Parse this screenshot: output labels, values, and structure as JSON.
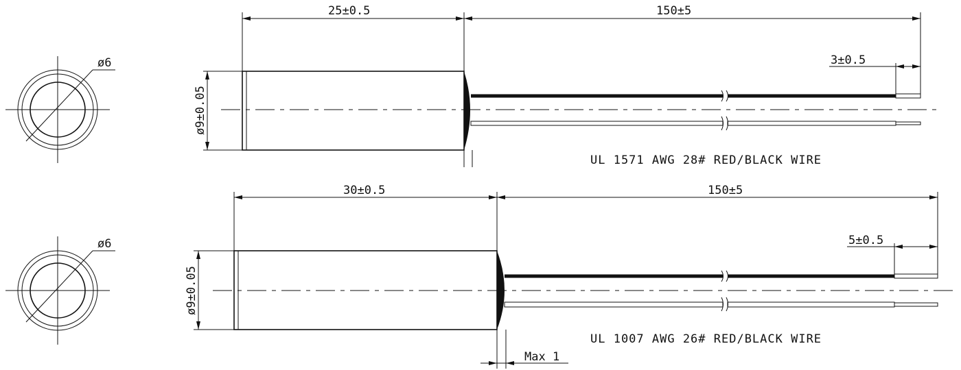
{
  "drawings": [
    {
      "id": "top",
      "end_view": {
        "diameter_label": "ø6"
      },
      "body": {
        "length_label": "25±0.5",
        "diameter_label": "ø9±0.05"
      },
      "lead": {
        "length_label": "150±5",
        "strip_label": "3±0.5"
      },
      "wire_note": "UL 1571 AWG 28# RED/BLACK WIRE"
    },
    {
      "id": "bottom",
      "end_view": {
        "diameter_label": "ø6"
      },
      "body": {
        "length_label": "30±0.5",
        "diameter_label": "ø9±0.05"
      },
      "lead": {
        "length_label": "150±5",
        "strip_label": "5±0.5"
      },
      "wire_note": "UL 1007 AWG 26# RED/BLACK WIRE",
      "potting_label": "Max 1"
    }
  ],
  "colors": {
    "line": "#111111",
    "background": "#ffffff"
  }
}
